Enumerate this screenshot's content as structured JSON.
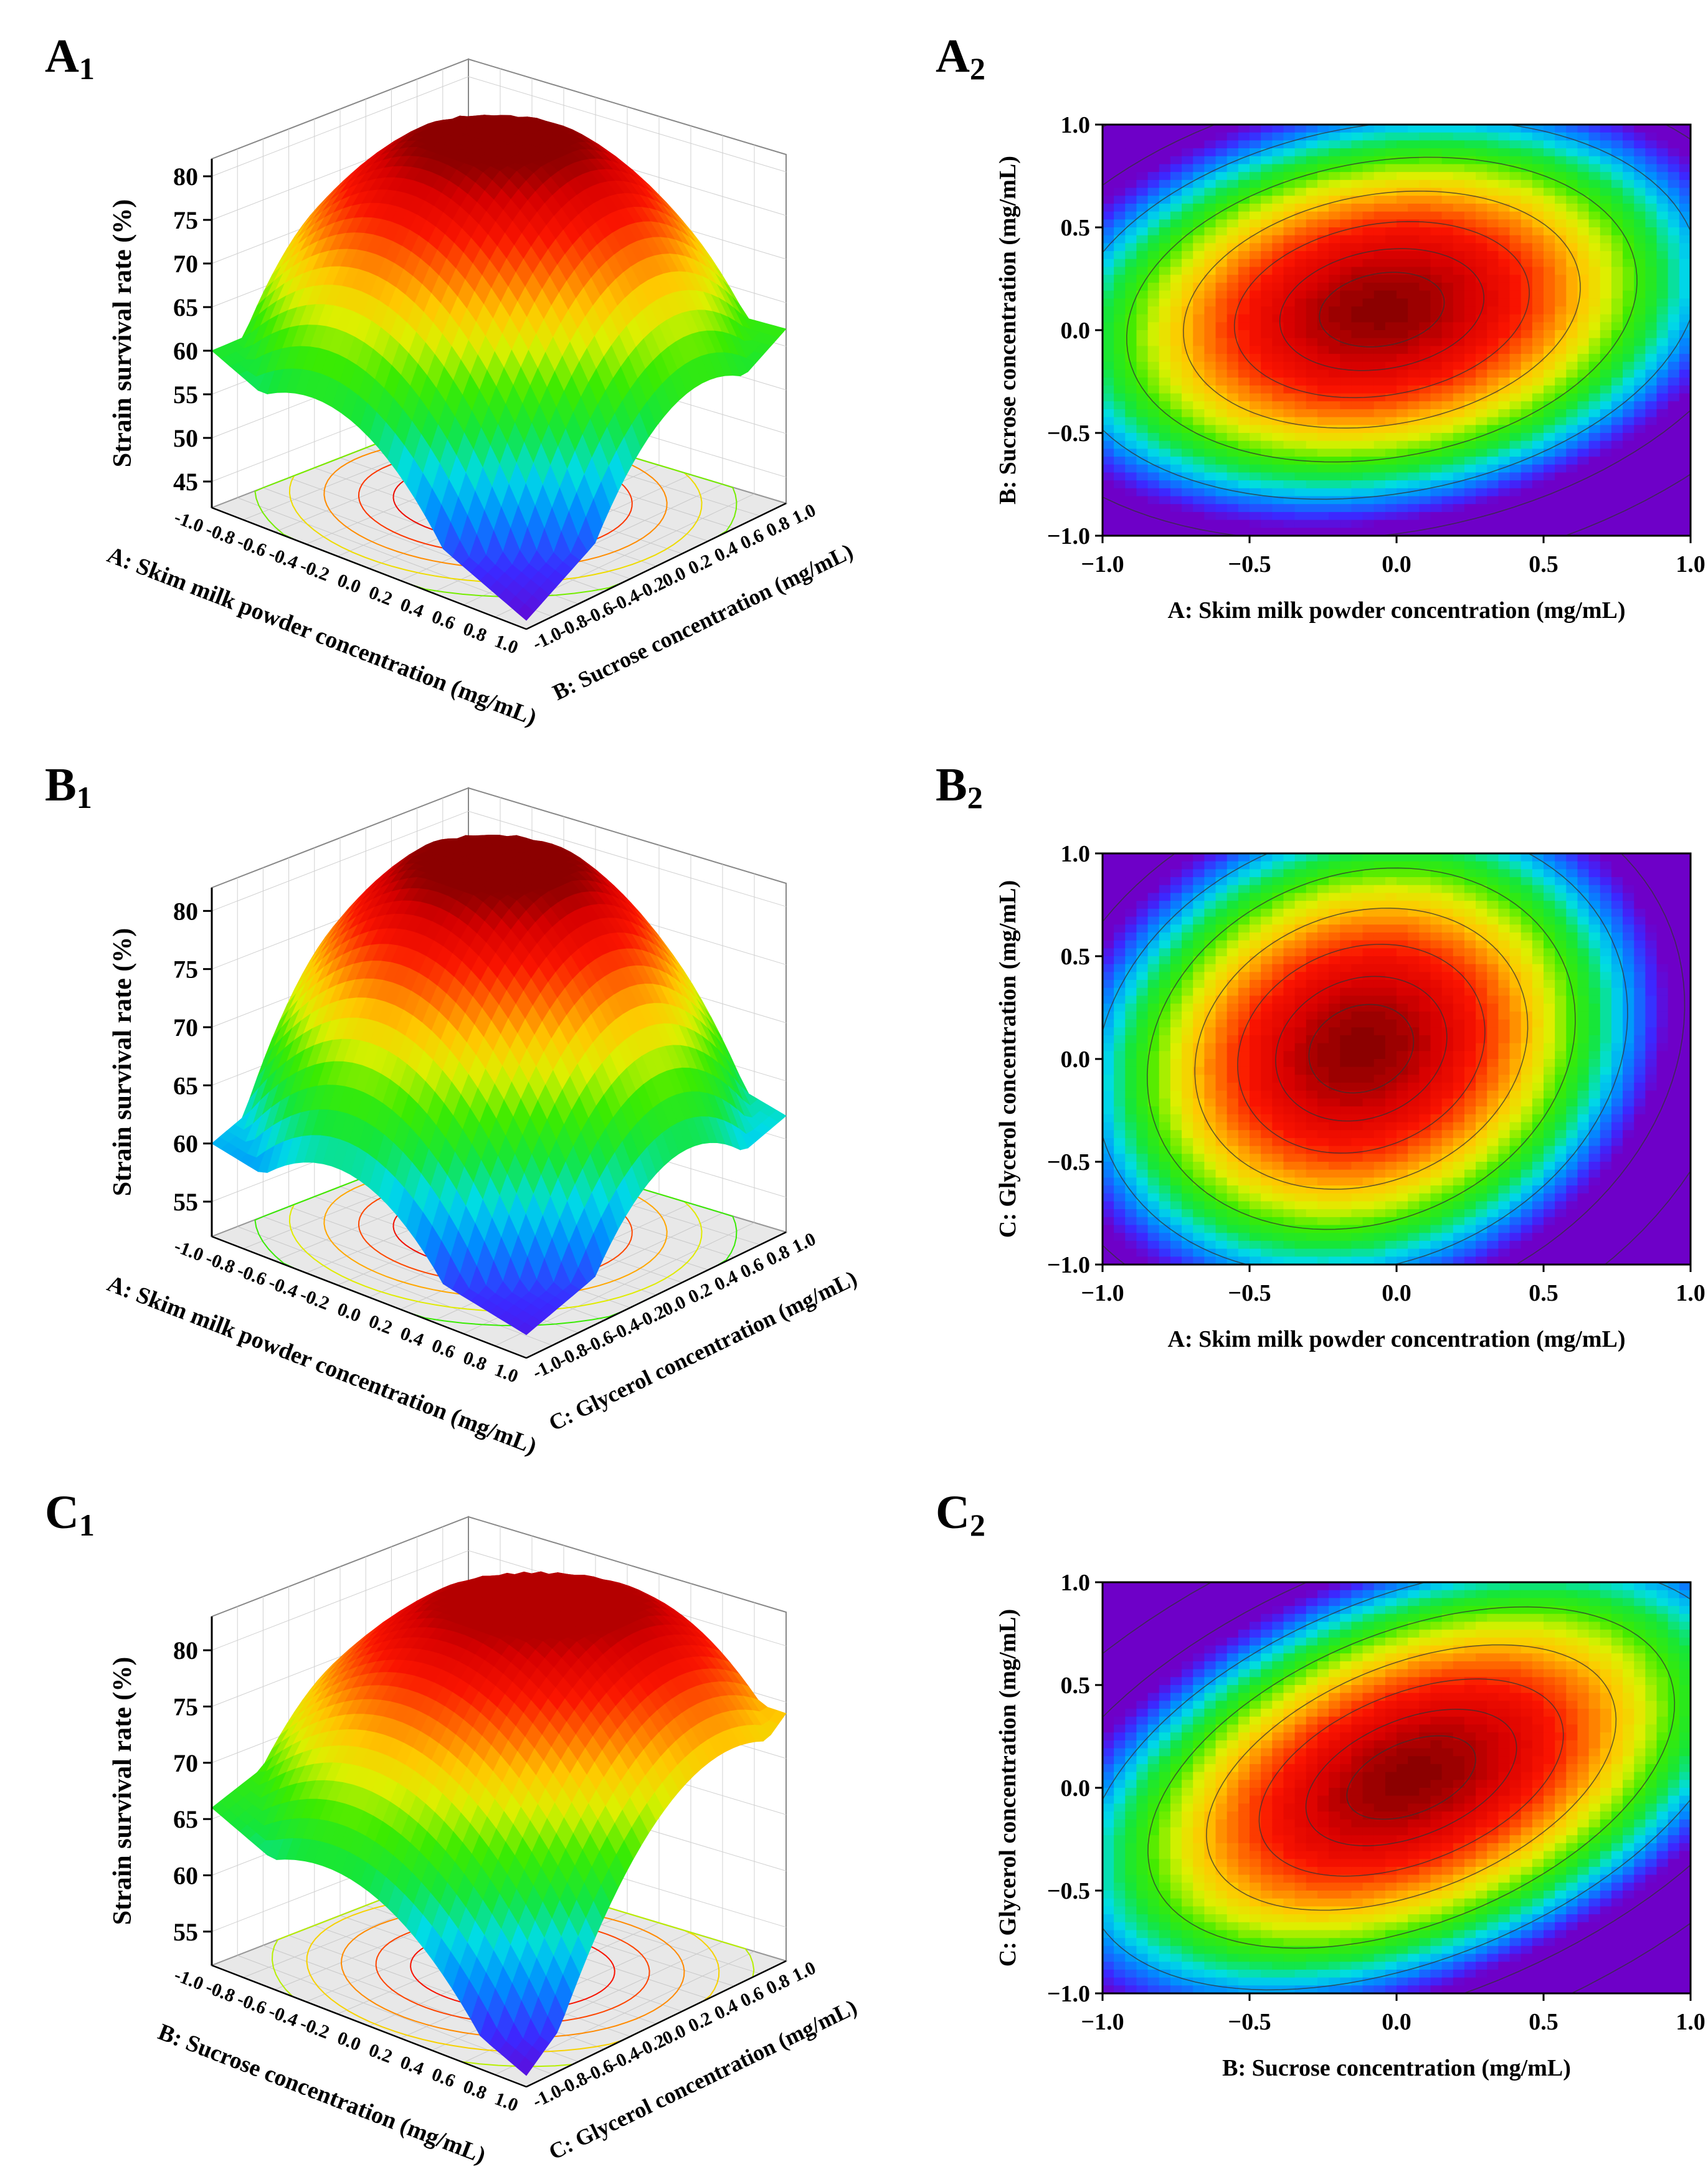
{
  "figure": {
    "panels": [
      {
        "id": "A1",
        "letter": "A",
        "sub": "1"
      },
      {
        "id": "A2",
        "letter": "A",
        "sub": "2"
      },
      {
        "id": "B1",
        "letter": "B",
        "sub": "1"
      },
      {
        "id": "B2",
        "letter": "B",
        "sub": "2"
      },
      {
        "id": "C1",
        "letter": "C",
        "sub": "1"
      },
      {
        "id": "C2",
        "letter": "C",
        "sub": "2"
      }
    ]
  },
  "chart_data": [
    {
      "id": "A1",
      "type": "surface3d",
      "zlabel": "Strain survival rate (%)",
      "xlabel": "A: Skim milk powder concentration (mg/mL)",
      "ylabel": "B: Sucrose concentration (mg/mL)",
      "zticks": [
        "45",
        "50",
        "55",
        "60",
        "65",
        "70",
        "75",
        "80"
      ],
      "zlim": [
        42,
        82
      ],
      "xticks": [
        "-1.0",
        "-0.8",
        "-0.6",
        "-0.4",
        "-0.2",
        "0.0",
        "0.2",
        "0.4",
        "0.6",
        "0.8",
        "1.0"
      ],
      "yticks": [
        "-1.0",
        "-0.8",
        "-0.6",
        "-0.4",
        "-0.2",
        "0.0",
        "0.2",
        "0.4",
        "0.6",
        "0.8",
        "1.0"
      ],
      "xlim": [
        -1,
        1
      ],
      "ylim": [
        -1,
        1
      ],
      "peak": {
        "x": -0.1,
        "y": 0.1,
        "z": 82
      },
      "corners": {
        "far": 61,
        "left": 60,
        "right": 62,
        "near": 43
      }
    },
    {
      "id": "A2",
      "type": "contour",
      "xlabel": "A: Skim milk powder concentration (mg/mL)",
      "ylabel": "B: Sucrose concentration (mg/mL)",
      "xticks": [
        "−1.0",
        "−0.5",
        "0.0",
        "0.5",
        "1.0"
      ],
      "yticks": [
        "−1.0",
        "−0.5",
        "0.0",
        "0.5",
        "1.0"
      ],
      "xlim": [
        -1,
        1
      ],
      "ylim": [
        -1,
        1
      ],
      "center": [
        -0.05,
        0.1
      ],
      "tilt_deg": 25,
      "a": 1.0,
      "b": 0.78,
      "peak": 82,
      "zlim": [
        42,
        82
      ]
    },
    {
      "id": "B1",
      "type": "surface3d",
      "zlabel": "Strain survival rate (%)",
      "xlabel": "A: Skim milk powder concentration (mg/mL)",
      "ylabel": "C: Glycerol concentration (mg/mL)",
      "zticks": [
        "55",
        "60",
        "65",
        "70",
        "75",
        "80"
      ],
      "zlim": [
        52,
        82
      ],
      "xticks": [
        "-1.0",
        "-0.8",
        "-0.6",
        "-0.4",
        "-0.2",
        "0.0",
        "0.2",
        "0.4",
        "0.6",
        "0.8",
        "1.0"
      ],
      "yticks": [
        "-1.0",
        "-0.8",
        "-0.6",
        "-0.4",
        "-0.2",
        "0.0",
        "0.2",
        "0.4",
        "0.6",
        "0.8",
        "1.0"
      ],
      "xlim": [
        -1,
        1
      ],
      "ylim": [
        -1,
        1
      ],
      "peak": {
        "x": -0.1,
        "y": 0.1,
        "z": 82
      },
      "corners": {
        "far": 70,
        "left": 60,
        "right": 62,
        "near": 54
      }
    },
    {
      "id": "B2",
      "type": "contour",
      "xlabel": "A: Skim milk powder concentration (mg/mL)",
      "ylabel": "C: Glycerol concentration (mg/mL)",
      "xticks": [
        "−1.0",
        "−0.5",
        "0.0",
        "0.5",
        "1.0"
      ],
      "yticks": [
        "−1.0",
        "−0.5",
        "0.0",
        "0.5",
        "1.0"
      ],
      "xlim": [
        -1,
        1
      ],
      "ylim": [
        -1,
        1
      ],
      "center": [
        -0.12,
        0.05
      ],
      "tilt_deg": -20,
      "a": 0.78,
      "b": 1.0,
      "peak": 82,
      "zlim": [
        42,
        82
      ]
    },
    {
      "id": "C1",
      "type": "surface3d",
      "zlabel": "Strain survival rate (%)",
      "xlabel": "B: Sucrose concentration (mg/mL)",
      "ylabel": "C: Glycerol concentration (mg/mL)",
      "zticks": [
        "55",
        "60",
        "65",
        "70",
        "75",
        "80"
      ],
      "zlim": [
        52,
        83
      ],
      "xticks": [
        "-1.0",
        "-0.8",
        "-0.6",
        "-0.4",
        "-0.2",
        "0.0",
        "0.2",
        "0.4",
        "0.6",
        "0.8",
        "1.0"
      ],
      "yticks": [
        "-1.0",
        "-0.8",
        "-0.6",
        "-0.4",
        "-0.2",
        "0.0",
        "0.2",
        "0.4",
        "0.6",
        "0.8",
        "1.0"
      ],
      "xlim": [
        -1,
        1
      ],
      "ylim": [
        -1,
        1
      ],
      "peak": {
        "x": 0.05,
        "y": 0.05,
        "z": 82
      },
      "corners": {
        "far": 75,
        "left": 66,
        "right": 74,
        "near": 53
      }
    },
    {
      "id": "C2",
      "type": "contour",
      "xlabel": "B: Sucrose concentration (mg/mL)",
      "ylabel": "C: Glycerol concentration (mg/mL)",
      "xticks": [
        "−1.0",
        "−0.5",
        "0.0",
        "0.5",
        "1.0"
      ],
      "yticks": [
        "−1.0",
        "−0.5",
        "0.0",
        "0.5",
        "1.0"
      ],
      "xlim": [
        -1,
        1
      ],
      "ylim": [
        -1,
        1
      ],
      "center": [
        0.05,
        0.05
      ],
      "tilt_deg": 40,
      "a": 1.15,
      "b": 0.72,
      "peak": 82,
      "zlim": [
        42,
        82
      ]
    }
  ]
}
